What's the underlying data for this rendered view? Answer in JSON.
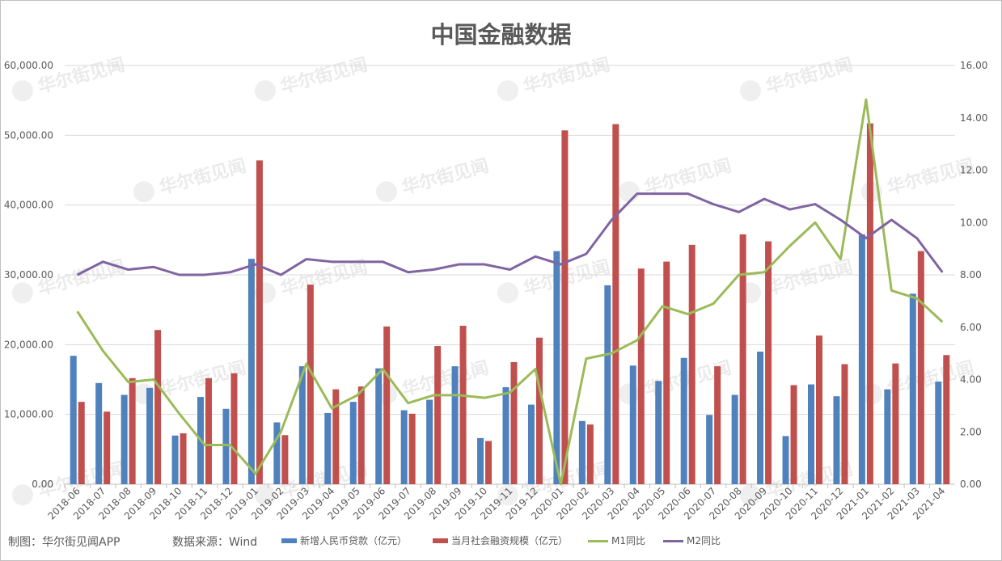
{
  "chart_data": {
    "type": "bar+line",
    "title": "中国金融数据",
    "watermark": "华尔街见闻",
    "categories": [
      "2018-06",
      "2018-07",
      "2018-08",
      "2018-09",
      "2018-10",
      "2018-11",
      "2018-12",
      "2019-01",
      "2019-02",
      "2019-03",
      "2019-04",
      "2019-05",
      "2019-06",
      "2019-07",
      "2019-08",
      "2019-09",
      "2019-10",
      "2019-11",
      "2019-12",
      "2020-01",
      "2020-02",
      "2020-03",
      "2020-04",
      "2020-05",
      "2020-06",
      "2020-07",
      "2020-08",
      "2020-09",
      "2020-10",
      "2020-11",
      "2020-12",
      "2021-01",
      "2021-02",
      "2021-03",
      "2021-04"
    ],
    "y_left": {
      "ylim": [
        0,
        60000
      ],
      "ticks": [
        "0.00",
        "10,000.00",
        "20,000.00",
        "30,000.00",
        "40,000.00",
        "50,000.00",
        "60,000.00"
      ]
    },
    "y_right": {
      "ylim": [
        0,
        16
      ],
      "ticks": [
        "0.00",
        "2.00",
        "4.00",
        "6.00",
        "8.00",
        "10.00",
        "12.00",
        "14.00",
        "16.00"
      ]
    },
    "grid": true,
    "legend_position": "bottom",
    "series": [
      {
        "name": "新增人民币贷款（亿元）",
        "type": "bar",
        "axis": "left",
        "color": "#4F81BD",
        "values": [
          18400,
          14500,
          12800,
          13800,
          6970,
          12500,
          10800,
          32300,
          8858,
          16900,
          10200,
          11800,
          16600,
          10600,
          12100,
          16900,
          6613,
          13900,
          11400,
          33400,
          9057,
          28500,
          17000,
          14800,
          18100,
          9927,
          12800,
          19000,
          6898,
          14300,
          12600,
          35800,
          13600,
          27300,
          14700
        ]
      },
      {
        "name": "当月社会融资规模（亿元）",
        "type": "bar",
        "axis": "left",
        "color": "#C0504D",
        "values": [
          11800,
          10400,
          15200,
          22100,
          7288,
          15200,
          15898,
          46400,
          7030,
          28600,
          13600,
          14000,
          22600,
          10100,
          19800,
          22700,
          6189,
          17500,
          21000,
          50700,
          8554,
          51600,
          30900,
          31900,
          34300,
          16900,
          35800,
          34800,
          14200,
          21300,
          17200,
          51700,
          17300,
          33400,
          18500
        ]
      },
      {
        "name": "M1同比",
        "type": "line",
        "axis": "right",
        "color": "#9BBB59",
        "values": [
          6.6,
          5.1,
          3.9,
          4.0,
          2.7,
          1.5,
          1.5,
          0.4,
          2.0,
          4.6,
          2.9,
          3.4,
          4.4,
          3.1,
          3.4,
          3.4,
          3.3,
          3.5,
          4.4,
          0.0,
          4.8,
          5.0,
          5.5,
          6.8,
          6.5,
          6.9,
          8.0,
          8.1,
          9.1,
          10.0,
          8.6,
          14.7,
          7.4,
          7.1,
          6.2
        ]
      },
      {
        "name": "M2同比",
        "type": "line",
        "axis": "right",
        "color": "#8064A2",
        "values": [
          8.0,
          8.5,
          8.2,
          8.3,
          8.0,
          8.0,
          8.1,
          8.4,
          8.0,
          8.6,
          8.5,
          8.5,
          8.5,
          8.1,
          8.2,
          8.4,
          8.4,
          8.2,
          8.7,
          8.4,
          8.8,
          10.1,
          11.1,
          11.1,
          11.1,
          10.7,
          10.4,
          10.9,
          10.5,
          10.7,
          10.1,
          9.4,
          10.1,
          9.4,
          8.1
        ]
      }
    ]
  },
  "footer": {
    "credit": "制图：华尔街见闻APP",
    "source": "数据来源：Wind"
  }
}
